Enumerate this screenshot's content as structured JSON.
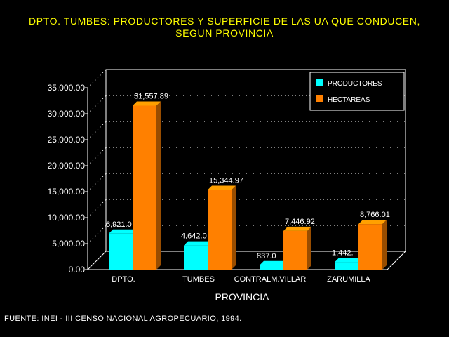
{
  "header": {
    "title_line1": "DPTO. TUMBES: PRODUCTORES Y SUPERFICIE DE LAS UA QUE CONDUCEN,",
    "title_line2": "SEGUN PROVINCIA"
  },
  "footer": {
    "source": "FUENTE: INEI - III CENSO NACIONAL AGROPECUARIO, 1994."
  },
  "colors": {
    "background": "#000000",
    "title": "#ffff00",
    "rule": "#1a2bd6",
    "productores": "#00ffff",
    "hectareas": "#ff8000",
    "axis_text": "#ffffff"
  },
  "chart_data": {
    "type": "bar",
    "style": "3d-clustered",
    "xlabel": "PROVINCIA",
    "ylabel": "",
    "categories": [
      "DPTO.",
      "TUMBES",
      "CONTRALM.VILLAR",
      "ZARUMILLA"
    ],
    "series": [
      {
        "name": "PRODUCTORES",
        "values": [
          6921,
          4642,
          837,
          1442
        ],
        "labels": [
          "6,921.0",
          "4,642.0",
          "837.0",
          "1,442."
        ]
      },
      {
        "name": "HECTAREAS",
        "values": [
          31557.89,
          15344.97,
          7446.92,
          8766.01
        ],
        "labels": [
          "31,557.89",
          "15,344.97",
          "7,446.92",
          "8,766.01"
        ]
      }
    ],
    "ylim": [
      0,
      35000
    ],
    "yticks": [
      0,
      5000,
      10000,
      15000,
      20000,
      25000,
      30000,
      35000
    ],
    "ytick_labels": [
      "0.00",
      "5,000.00",
      "10,000.00",
      "15,000.00",
      "20,000.00",
      "25,000.00",
      "30,000.00",
      "35,000.00"
    ],
    "grid": true,
    "legend_position": "top-right"
  }
}
